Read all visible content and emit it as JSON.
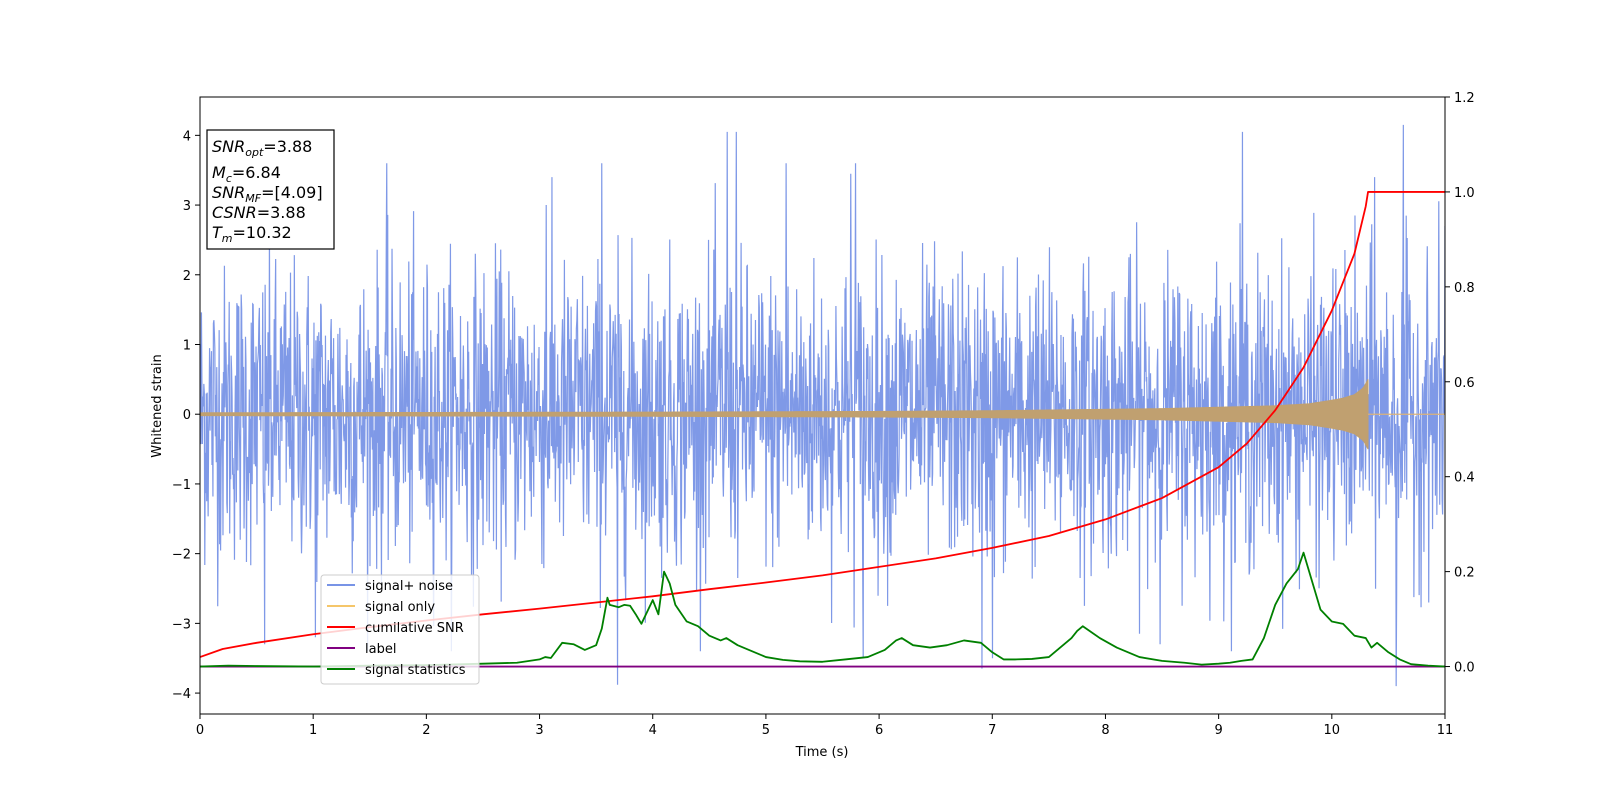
{
  "chart_data": {
    "type": "line",
    "xlabel": "Time (s)",
    "ylabel": "Whitened strain",
    "xlim": [
      0,
      11
    ],
    "ylim_left": [
      -4.3,
      4.55
    ],
    "ylim_right": [
      -0.1,
      1.2
    ],
    "xticks": [
      "0",
      "1",
      "2",
      "3",
      "4",
      "5",
      "6",
      "7",
      "8",
      "9",
      "10",
      "11"
    ],
    "yticks_left": [
      "−4",
      "−3",
      "−2",
      "−1",
      "0",
      "1",
      "2",
      "3",
      "4"
    ],
    "yticks_right": [
      "0.0",
      "0.2",
      "0.4",
      "0.6",
      "0.8",
      "1.0",
      "1.2"
    ],
    "legend_placement": "lower-left",
    "info_box": {
      "line1_main": "SNR",
      "line1_sub": "opt",
      "line1_value": "=3.88",
      "line2_main": "M",
      "line2_sub": "c",
      "line2_value": "=6.84",
      "line3_main": "SNR",
      "line3_sub": "MF",
      "line3_value": "=[4.09]",
      "line4_main": "CSNR",
      "line4_value": "=3.88",
      "line5_main": "T",
      "line5_sub": "m",
      "line5_value": "=10.32"
    },
    "series": [
      {
        "name": "signal+ noise",
        "axis": "left",
        "color": "#7894e6",
        "description_values": {
          "noise_std": 1.0,
          "typical_range": [
            -2.5,
            2.5
          ],
          "spikes": [
            [
              0.57,
              -3.3
            ],
            [
              1.02,
              -3.2
            ],
            [
              1.65,
              3.6
            ],
            [
              3.06,
              3.0
            ],
            [
              3.69,
              -3.88
            ],
            [
              3.55,
              3.6
            ],
            [
              4.66,
              4.05
            ],
            [
              4.74,
              4.05
            ],
            [
              5.18,
              3.6
            ],
            [
              5.75,
              3.45
            ],
            [
              5.79,
              3.6
            ],
            [
              5.86,
              -3.5
            ],
            [
              6.91,
              -3.65
            ],
            [
              7.0,
              -3.5
            ],
            [
              9.21,
              4.05
            ],
            [
              10.38,
              3.4
            ],
            [
              10.57,
              -3.9
            ],
            [
              10.63,
              4.15
            ],
            [
              11.0,
              2.7
            ]
          ]
        }
      },
      {
        "name": "signal only",
        "axis": "left",
        "color": "#f5c66a",
        "description_values": {
          "chirp_end_time": 10.32,
          "envelope": [
            [
              0,
              0.02
            ],
            [
              2,
              0.025
            ],
            [
              4,
              0.03
            ],
            [
              6,
              0.04
            ],
            [
              7,
              0.05
            ],
            [
              8,
              0.07
            ],
            [
              8.5,
              0.08
            ],
            [
              9,
              0.1
            ],
            [
              9.5,
              0.12
            ],
            [
              9.8,
              0.15
            ],
            [
              10.0,
              0.2
            ],
            [
              10.1,
              0.23
            ],
            [
              10.2,
              0.28
            ],
            [
              10.28,
              0.38
            ],
            [
              10.32,
              0.5
            ]
          ]
        }
      },
      {
        "name": "cumilative SNR",
        "axis": "right",
        "color": "#ff0000",
        "x": [
          0,
          0.2,
          0.5,
          1,
          1.5,
          2,
          2.5,
          3,
          3.5,
          4,
          4.5,
          5,
          5.5,
          6,
          6.5,
          7,
          7.5,
          8,
          8.5,
          9,
          9.25,
          9.5,
          9.75,
          10.0,
          10.1,
          10.2,
          10.25,
          10.3,
          10.32,
          11
        ],
        "values": [
          0.02,
          0.037,
          0.05,
          0.068,
          0.083,
          0.097,
          0.11,
          0.122,
          0.135,
          0.148,
          0.163,
          0.177,
          0.192,
          0.21,
          0.228,
          0.25,
          0.275,
          0.31,
          0.355,
          0.42,
          0.47,
          0.54,
          0.63,
          0.75,
          0.81,
          0.87,
          0.92,
          0.97,
          1.0,
          1.0
        ]
      },
      {
        "name": "label",
        "axis": "right",
        "color": "#800080",
        "x": [
          0,
          11
        ],
        "values": [
          0.0,
          0.0
        ]
      },
      {
        "name": "signal statistics",
        "axis": "right",
        "color": "#008000",
        "x": [
          0,
          0.25,
          0.5,
          1,
          1.5,
          2,
          2.5,
          2.8,
          3.0,
          3.05,
          3.1,
          3.2,
          3.3,
          3.4,
          3.5,
          3.55,
          3.6,
          3.62,
          3.7,
          3.75,
          3.8,
          3.85,
          3.9,
          4.0,
          4.05,
          4.1,
          4.15,
          4.2,
          4.3,
          4.4,
          4.5,
          4.6,
          4.65,
          4.75,
          4.85,
          5.0,
          5.15,
          5.3,
          5.5,
          5.7,
          5.9,
          6.05,
          6.15,
          6.2,
          6.3,
          6.45,
          6.6,
          6.75,
          6.9,
          7.0,
          7.1,
          7.2,
          7.35,
          7.5,
          7.6,
          7.7,
          7.75,
          7.8,
          7.95,
          8.1,
          8.3,
          8.5,
          8.7,
          8.85,
          9.0,
          9.1,
          9.2,
          9.3,
          9.4,
          9.5,
          9.6,
          9.7,
          9.75,
          9.8,
          9.9,
          10.0,
          10.1,
          10.2,
          10.3,
          10.35,
          10.4,
          10.5,
          10.6,
          10.7,
          10.85,
          11
        ],
        "values": [
          0.0,
          0.002,
          0.001,
          0.0,
          0.002,
          0.003,
          0.006,
          0.008,
          0.015,
          0.02,
          0.018,
          0.05,
          0.047,
          0.035,
          0.045,
          0.08,
          0.145,
          0.13,
          0.125,
          0.13,
          0.128,
          0.11,
          0.09,
          0.14,
          0.11,
          0.2,
          0.175,
          0.13,
          0.095,
          0.085,
          0.065,
          0.055,
          0.06,
          0.045,
          0.035,
          0.02,
          0.014,
          0.011,
          0.01,
          0.015,
          0.02,
          0.035,
          0.055,
          0.06,
          0.045,
          0.04,
          0.045,
          0.055,
          0.05,
          0.03,
          0.015,
          0.015,
          0.016,
          0.02,
          0.04,
          0.06,
          0.075,
          0.085,
          0.06,
          0.04,
          0.02,
          0.012,
          0.008,
          0.004,
          0.006,
          0.008,
          0.012,
          0.015,
          0.06,
          0.13,
          0.175,
          0.205,
          0.24,
          0.2,
          0.12,
          0.095,
          0.09,
          0.065,
          0.06,
          0.04,
          0.05,
          0.03,
          0.015,
          0.005,
          0.002,
          0.0
        ]
      }
    ],
    "grid": false
  }
}
